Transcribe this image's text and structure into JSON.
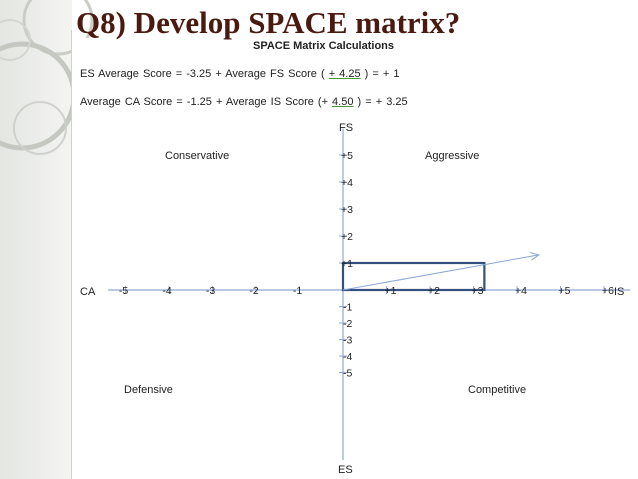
{
  "slide": {
    "title": "Q8) Develop SPACE matrix?",
    "subtitle": "SPACE Matrix Calculations"
  },
  "calculations": {
    "es": {
      "prefix": "ES Average Score = -3.25 + Average FS Score ( ",
      "value": "+ 4.25",
      "suffix": " ) = + 1"
    },
    "ca": {
      "prefix": "Average CA Score = -1.25 + Average IS Score (+ ",
      "value": "4.50",
      "suffix": " ) = + 3.25"
    }
  },
  "colors": {
    "title": "#4a1a10",
    "axis": "#8fa8d2",
    "rectangle": "#34507e",
    "vector": "#8aa6d4"
  },
  "chart_data": {
    "type": "space-matrix",
    "quadrants": {
      "top_left": "Conservative",
      "top_right": "Aggressive",
      "bottom_left": "Defensive",
      "bottom_right": "Competitive"
    },
    "axes": {
      "left": "CA",
      "right": "IS",
      "top": "FS",
      "bottom": "ES"
    },
    "x_ticks": [
      {
        "value": -5,
        "label": "-5"
      },
      {
        "value": -4,
        "label": "-4"
      },
      {
        "value": -3,
        "label": "-3"
      },
      {
        "value": -2,
        "label": "-2"
      },
      {
        "value": -1,
        "label": "-1"
      },
      {
        "value": 1,
        "label": "+1"
      },
      {
        "value": 2,
        "label": "+2"
      },
      {
        "value": 3,
        "label": "+3"
      },
      {
        "value": 4,
        "label": "+4"
      },
      {
        "value": 5,
        "label": "+5"
      },
      {
        "value": 6,
        "label": "+6"
      }
    ],
    "y_ticks_positive": [
      {
        "value": 1,
        "label": "+1"
      },
      {
        "value": 2,
        "label": "+2"
      },
      {
        "value": 3,
        "label": "+3"
      },
      {
        "value": 4,
        "label": "+4"
      },
      {
        "value": 5,
        "label": "+5"
      }
    ],
    "y_ticks_negative": [
      {
        "value": -1,
        "label": "-1"
      },
      {
        "value": -2,
        "label": "-2"
      },
      {
        "value": -3,
        "label": "-3"
      },
      {
        "value": -4,
        "label": "-4"
      },
      {
        "value": -5,
        "label": "-5"
      }
    ],
    "x_range": [
      -5.4,
      6.6
    ],
    "y_range": [
      -6.2,
      6.2
    ],
    "rectangle": {
      "x0": 0,
      "y0": 0,
      "x1": 3.25,
      "y1": 1
    },
    "vector": {
      "from": [
        0,
        0
      ],
      "to": [
        4.5,
        1.3
      ]
    }
  }
}
